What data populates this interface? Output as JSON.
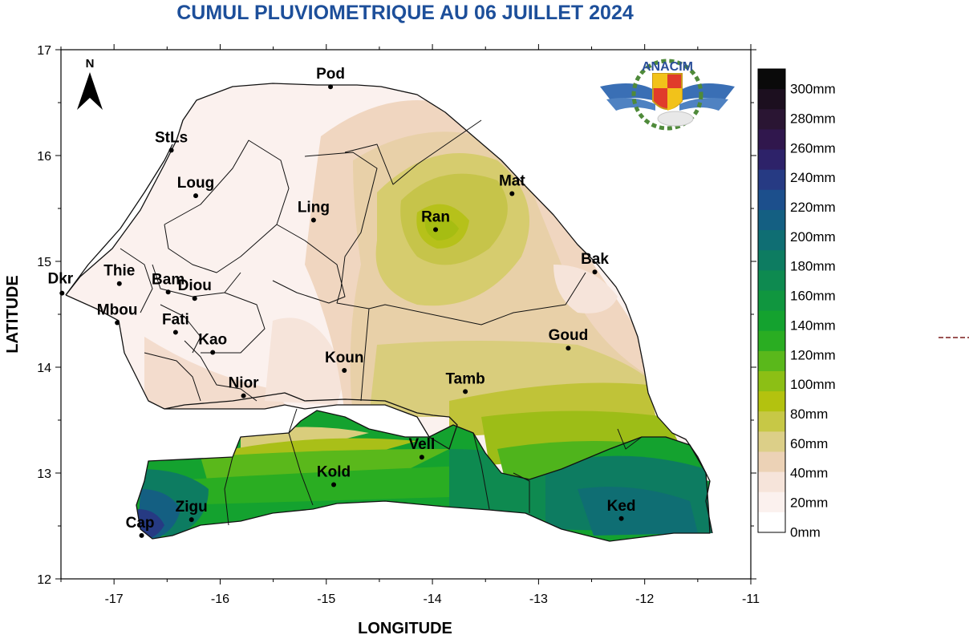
{
  "title": "CUMUL PLUVIOMETRIQUE AU 06 JUILLET 2024",
  "axes": {
    "xlabel": "LONGITUDE",
    "ylabel": "LATITUDE",
    "x_ticks": [
      "-17",
      "-16",
      "-15",
      "-14",
      "-13",
      "-12",
      "-11"
    ],
    "y_ticks": [
      "12",
      "13",
      "14",
      "15",
      "16",
      "17"
    ],
    "x_range": [
      -17.5,
      -11
    ],
    "y_range": [
      12,
      17
    ]
  },
  "north_arrow": {
    "label": "N",
    "icon": "north-arrow-icon"
  },
  "logo": {
    "text": "ANACIM",
    "icon": "anacim-logo-icon"
  },
  "stations": [
    {
      "name": "Pod",
      "lon": -14.96,
      "lat": 16.65
    },
    {
      "name": "StLs",
      "lon": -16.46,
      "lat": 16.05
    },
    {
      "name": "Loug",
      "lon": -16.23,
      "lat": 15.62
    },
    {
      "name": "Ling",
      "lon": -15.12,
      "lat": 15.39
    },
    {
      "name": "Mat",
      "lon": -13.25,
      "lat": 15.64
    },
    {
      "name": "Ran",
      "lon": -13.97,
      "lat": 15.3
    },
    {
      "name": "Bak",
      "lon": -12.47,
      "lat": 14.9
    },
    {
      "name": "Thie",
      "lon": -16.95,
      "lat": 14.79
    },
    {
      "name": "Dkr",
      "lon": -17.49,
      "lat": 14.7
    },
    {
      "name": "Bam",
      "lon": -16.49,
      "lat": 14.71
    },
    {
      "name": "Diou",
      "lon": -16.24,
      "lat": 14.65
    },
    {
      "name": "Mbou",
      "lon": -16.97,
      "lat": 14.42
    },
    {
      "name": "Fati",
      "lon": -16.42,
      "lat": 14.33
    },
    {
      "name": "Kao",
      "lon": -16.07,
      "lat": 14.14
    },
    {
      "name": "Goud",
      "lon": -12.72,
      "lat": 14.18
    },
    {
      "name": "Koun",
      "lon": -14.83,
      "lat": 13.97
    },
    {
      "name": "Nior",
      "lon": -15.78,
      "lat": 13.73
    },
    {
      "name": "Tamb",
      "lon": -13.69,
      "lat": 13.77
    },
    {
      "name": "Vell",
      "lon": -14.1,
      "lat": 13.15
    },
    {
      "name": "Kold",
      "lon": -14.93,
      "lat": 12.89
    },
    {
      "name": "Zigu",
      "lon": -16.27,
      "lat": 12.56
    },
    {
      "name": "Cap",
      "lon": -16.74,
      "lat": 12.41
    },
    {
      "name": "Ked",
      "lon": -12.22,
      "lat": 12.57
    }
  ],
  "legend": {
    "labels": [
      "300mm",
      "280mm",
      "260mm",
      "240mm",
      "220mm",
      "200mm",
      "180mm",
      "160mm",
      "140mm",
      "120mm",
      "100mm",
      "80mm",
      "60mm",
      "40mm",
      "20mm",
      "0mm"
    ],
    "colors": [
      "#0a0a0a",
      "#1c0f1f",
      "#2a1533",
      "#30174d",
      "#2d2269",
      "#263a83",
      "#1c4f8c",
      "#145f82",
      "#0f6e73",
      "#0d7c61",
      "#0e8a50",
      "#10963f",
      "#14a22f",
      "#2aad22",
      "#5ab81b",
      "#8cbf15",
      "#b3c20f",
      "#c7c846",
      "#dccf88",
      "#ecd2b6",
      "#f6e4da",
      "#fbf1ee",
      "#ffffff"
    ]
  }
}
